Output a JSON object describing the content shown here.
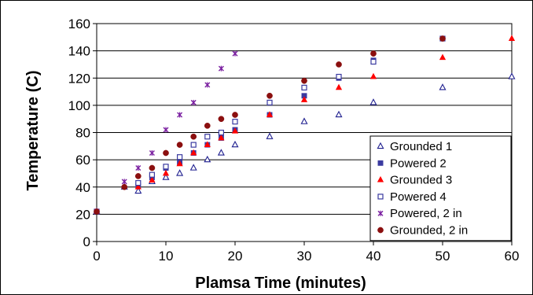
{
  "chart_data": {
    "type": "scatter",
    "xlabel": "Plamsa Time (minutes)",
    "ylabel": "Temperature (C)",
    "xlim": [
      0,
      60
    ],
    "ylim": [
      0,
      160
    ],
    "x_ticks": [
      0,
      10,
      20,
      30,
      40,
      50,
      60
    ],
    "y_ticks": [
      0,
      20,
      40,
      60,
      80,
      100,
      120,
      140,
      160
    ],
    "grid": "horizontal",
    "legend_position": "bottom-right",
    "series": [
      {
        "name": "Grounded 1",
        "marker": "open-triangle",
        "color": "#1f1f8f",
        "points": [
          [
            0,
            22
          ],
          [
            4,
            40
          ],
          [
            6,
            37
          ],
          [
            8,
            44
          ],
          [
            10,
            47
          ],
          [
            12,
            50
          ],
          [
            14,
            54
          ],
          [
            16,
            60
          ],
          [
            18,
            65
          ],
          [
            20,
            71
          ],
          [
            25,
            77
          ],
          [
            30,
            88
          ],
          [
            35,
            93
          ],
          [
            40,
            102
          ],
          [
            50,
            113
          ],
          [
            60,
            121
          ]
        ]
      },
      {
        "name": "Powered 2",
        "marker": "filled-square",
        "color": "#3a3aa0",
        "points": [
          [
            0,
            22
          ],
          [
            6,
            41
          ],
          [
            8,
            47
          ],
          [
            10,
            54
          ],
          [
            12,
            58
          ],
          [
            14,
            65
          ],
          [
            16,
            71
          ],
          [
            18,
            76
          ],
          [
            20,
            82
          ],
          [
            25,
            93
          ],
          [
            30,
            107
          ],
          [
            35,
            120
          ],
          [
            40,
            133
          ],
          [
            50,
            149
          ]
        ]
      },
      {
        "name": "Grounded 3",
        "marker": "filled-triangle",
        "color": "#ff0000",
        "points": [
          [
            0,
            22
          ],
          [
            6,
            40
          ],
          [
            8,
            45
          ],
          [
            10,
            50
          ],
          [
            12,
            57
          ],
          [
            14,
            65
          ],
          [
            16,
            71
          ],
          [
            18,
            76
          ],
          [
            20,
            81
          ],
          [
            25,
            93
          ],
          [
            30,
            104
          ],
          [
            35,
            113
          ],
          [
            40,
            121
          ],
          [
            50,
            135
          ],
          [
            60,
            149
          ]
        ]
      },
      {
        "name": "Powered 4",
        "marker": "open-square",
        "color": "#3a3aa0",
        "points": [
          [
            0,
            22
          ],
          [
            6,
            43
          ],
          [
            8,
            49
          ],
          [
            10,
            55
          ],
          [
            12,
            62
          ],
          [
            14,
            71
          ],
          [
            16,
            77
          ],
          [
            18,
            80
          ],
          [
            20,
            88
          ],
          [
            25,
            102
          ],
          [
            30,
            113
          ],
          [
            35,
            121
          ],
          [
            40,
            132
          ],
          [
            50,
            149
          ]
        ]
      },
      {
        "name": "Powered, 2 in",
        "marker": "star",
        "color": "#7a1fa0",
        "points": [
          [
            0,
            22
          ],
          [
            4,
            44
          ],
          [
            6,
            54
          ],
          [
            8,
            65
          ],
          [
            10,
            82
          ],
          [
            12,
            93
          ],
          [
            14,
            102
          ],
          [
            16,
            115
          ],
          [
            18,
            127
          ],
          [
            20,
            138
          ]
        ]
      },
      {
        "name": "Grounded, 2 in",
        "marker": "filled-circle",
        "color": "#8b0f0f",
        "points": [
          [
            0,
            22
          ],
          [
            4,
            40
          ],
          [
            6,
            48
          ],
          [
            8,
            54
          ],
          [
            10,
            65
          ],
          [
            12,
            71
          ],
          [
            14,
            77
          ],
          [
            16,
            85
          ],
          [
            18,
            90
          ],
          [
            20,
            93
          ],
          [
            25,
            107
          ],
          [
            30,
            118
          ],
          [
            35,
            130
          ],
          [
            40,
            138
          ],
          [
            50,
            149
          ]
        ]
      }
    ]
  }
}
